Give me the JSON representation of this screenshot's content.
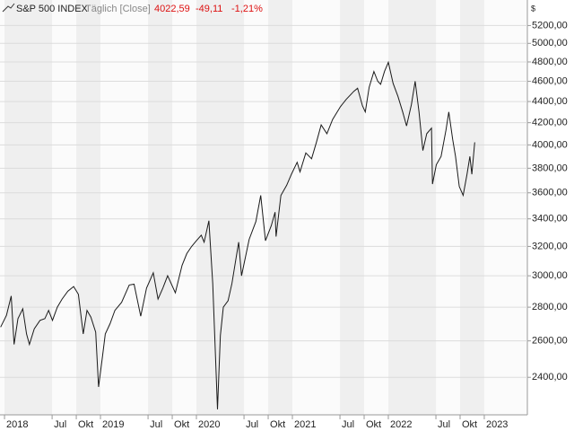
{
  "chart_data": {
    "type": "line",
    "title": "S&P 500 INDEX",
    "subtitle": "Täglich [Close]",
    "last_close": "4022,59",
    "change": "-49,11",
    "change_pct": "-1,21%",
    "y_label": "$",
    "log_scale": true,
    "grid": true,
    "x": [
      2017.96,
      2018.02,
      2018.07,
      2018.1,
      2018.14,
      2018.19,
      2018.23,
      2018.26,
      2018.31,
      2018.37,
      2018.42,
      2018.46,
      2018.5,
      2018.55,
      2018.6,
      2018.66,
      2018.72,
      2018.77,
      2018.82,
      2018.86,
      2018.9,
      2018.95,
      2018.98,
      2019.02,
      2019.05,
      2019.1,
      2019.15,
      2019.22,
      2019.3,
      2019.35,
      2019.42,
      2019.48,
      2019.55,
      2019.6,
      2019.65,
      2019.7,
      2019.78,
      2019.85,
      2019.9,
      2019.95,
      2020.0,
      2020.05,
      2020.08,
      2020.13,
      2020.17,
      2020.22,
      2020.25,
      2020.28,
      2020.33,
      2020.37,
      2020.44,
      2020.47,
      2020.55,
      2020.62,
      2020.67,
      2020.72,
      2020.78,
      2020.82,
      2020.83,
      2020.88,
      2020.94,
      2020.99,
      2021.05,
      2021.08,
      2021.14,
      2021.2,
      2021.25,
      2021.3,
      2021.36,
      2021.42,
      2021.5,
      2021.56,
      2021.64,
      2021.68,
      2021.73,
      2021.76,
      2021.8,
      2021.85,
      2021.89,
      2021.92,
      2021.96,
      2022.0,
      2022.05,
      2022.1,
      2022.15,
      2022.19,
      2022.24,
      2022.28,
      2022.32,
      2022.36,
      2022.4,
      2022.45,
      2022.46,
      2022.5,
      2022.55,
      2022.6,
      2022.63,
      2022.67,
      2022.7,
      2022.74,
      2022.78,
      2022.82,
      2022.85,
      2022.87,
      2022.9
    ],
    "series": [
      {
        "name": "S&P 500 INDEX",
        "color": "#1a1a1a",
        "values": [
          2680,
          2750,
          2870,
          2580,
          2730,
          2790,
          2640,
          2580,
          2670,
          2720,
          2730,
          2780,
          2720,
          2800,
          2850,
          2900,
          2930,
          2880,
          2640,
          2780,
          2740,
          2650,
          2350,
          2510,
          2640,
          2700,
          2780,
          2830,
          2940,
          2945,
          2745,
          2920,
          3020,
          2850,
          2920,
          3000,
          2890,
          3070,
          3150,
          3200,
          3240,
          3280,
          3230,
          3386,
          2950,
          2237,
          2630,
          2800,
          2840,
          2950,
          3230,
          3000,
          3250,
          3380,
          3580,
          3240,
          3350,
          3450,
          3270,
          3580,
          3660,
          3750,
          3850,
          3770,
          3930,
          3880,
          4020,
          4180,
          4100,
          4230,
          4350,
          4420,
          4500,
          4530,
          4360,
          4300,
          4540,
          4700,
          4600,
          4570,
          4700,
          4796,
          4580,
          4450,
          4300,
          4170,
          4370,
          4600,
          4300,
          3950,
          4100,
          4150,
          3670,
          3830,
          3900,
          4130,
          4300,
          4050,
          3900,
          3650,
          3580,
          3750,
          3900,
          3750,
          4022.59
        ]
      }
    ],
    "xlim": [
      2017.953,
      2023.449
    ],
    "ylim": [
      2210,
      5500
    ],
    "xticks": [
      2018,
      {
        "value": 2018.496,
        "label": "Jul"
      },
      {
        "value": 2018.748,
        "label": "Okt"
      },
      2019,
      {
        "value": 2019.496,
        "label": "Jul"
      },
      {
        "value": 2019.748,
        "label": "Okt"
      },
      2020,
      {
        "value": 2020.496,
        "label": "Jul"
      },
      {
        "value": 2020.748,
        "label": "Okt"
      },
      2021,
      {
        "value": 2021.496,
        "label": "Jul"
      },
      {
        "value": 2021.748,
        "label": "Okt"
      },
      2022,
      {
        "value": 2022.496,
        "label": "Jul"
      },
      {
        "value": 2022.748,
        "label": "Okt"
      },
      2023
    ],
    "yticks": [
      {
        "value": 2400,
        "label": "2400,00"
      },
      {
        "value": 2600,
        "label": "2600,00"
      },
      {
        "value": 2800,
        "label": "2800,00"
      },
      {
        "value": 3000,
        "label": "3000,00"
      },
      {
        "value": 3200,
        "label": "3200,00"
      },
      {
        "value": 3400,
        "label": "3400,00"
      },
      {
        "value": 3600,
        "label": "3600,00"
      },
      {
        "value": 3800,
        "label": "3800,00"
      },
      {
        "value": 4000,
        "label": "4000,00"
      },
      {
        "value": 4200,
        "label": "4200,00"
      },
      {
        "value": 4400,
        "label": "4400,00"
      },
      {
        "value": 4600,
        "label": "4600,00"
      },
      {
        "value": 4800,
        "label": "4800,00"
      },
      {
        "value": 5000,
        "label": "5000,00"
      },
      {
        "value": 5200,
        "label": "5200,00"
      }
    ]
  }
}
